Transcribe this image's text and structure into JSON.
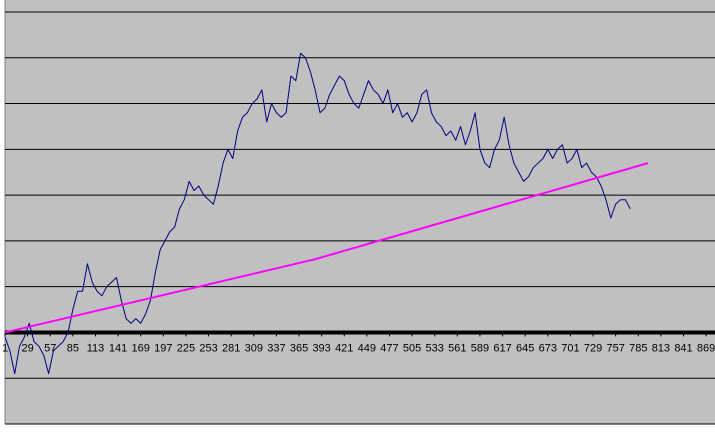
{
  "chart_data": {
    "type": "line",
    "xlim": [
      1,
      880
    ],
    "ylim": [
      -2,
      7
    ],
    "xticks": [
      1,
      29,
      57,
      85,
      113,
      141,
      169,
      197,
      225,
      253,
      281,
      309,
      337,
      365,
      393,
      421,
      449,
      477,
      505,
      533,
      561,
      589,
      617,
      645,
      673,
      701,
      729,
      757,
      785,
      813,
      841,
      869
    ],
    "yticks": [
      -2,
      -1,
      0,
      1,
      2,
      3,
      4,
      5,
      6,
      7
    ],
    "grid": true,
    "series": [
      {
        "color": "#000080",
        "x": [
          1,
          7,
          13,
          19,
          25,
          31,
          37,
          43,
          49,
          55,
          61,
          67,
          73,
          79,
          85,
          91,
          97,
          103,
          109,
          115,
          121,
          127,
          133,
          139,
          145,
          151,
          157,
          163,
          169,
          175,
          181,
          187,
          193,
          199,
          205,
          211,
          217,
          223,
          229,
          235,
          241,
          247,
          253,
          259,
          265,
          271,
          277,
          283,
          289,
          295,
          301,
          307,
          313,
          319,
          325,
          331,
          337,
          343,
          349,
          355,
          361,
          367,
          373,
          379,
          385,
          391,
          397,
          403,
          409,
          415,
          421,
          427,
          433,
          439,
          445,
          451,
          457,
          463,
          469,
          475,
          481,
          487,
          493,
          499,
          505,
          511,
          517,
          523,
          529,
          535,
          541,
          547,
          553,
          559,
          565,
          571,
          577,
          583,
          589,
          595,
          601,
          607,
          613,
          619,
          625,
          631,
          637,
          643,
          649,
          655,
          661,
          667,
          673,
          679,
          685,
          691,
          697,
          703,
          709,
          715,
          721,
          727,
          733,
          739,
          745,
          751,
          757,
          763,
          769,
          775
        ],
        "values": [
          -0.1,
          -0.4,
          -0.9,
          -0.3,
          -0.1,
          0.2,
          -0.2,
          -0.3,
          -0.5,
          -0.9,
          -0.4,
          -0.3,
          -0.2,
          0.0,
          0.5,
          0.9,
          0.9,
          1.5,
          1.1,
          0.9,
          0.8,
          1.0,
          1.1,
          1.2,
          0.7,
          0.3,
          0.2,
          0.3,
          0.2,
          0.4,
          0.7,
          1.3,
          1.8,
          2.0,
          2.2,
          2.3,
          2.7,
          2.9,
          3.3,
          3.1,
          3.2,
          3.0,
          2.9,
          2.8,
          3.2,
          3.7,
          4.0,
          3.8,
          4.4,
          4.7,
          4.8,
          5.0,
          5.1,
          5.3,
          4.6,
          5.0,
          4.8,
          4.7,
          4.8,
          5.6,
          5.5,
          6.1,
          6.0,
          5.7,
          5.3,
          4.8,
          4.9,
          5.2,
          5.4,
          5.6,
          5.5,
          5.2,
          5.0,
          4.9,
          5.2,
          5.5,
          5.3,
          5.2,
          5.0,
          5.3,
          4.8,
          5.0,
          4.7,
          4.8,
          4.6,
          4.8,
          5.2,
          5.3,
          4.8,
          4.6,
          4.5,
          4.3,
          4.4,
          4.2,
          4.5,
          4.1,
          4.4,
          4.8,
          4.0,
          3.7,
          3.6,
          4.0,
          4.2,
          4.7,
          4.1,
          3.7,
          3.5,
          3.3,
          3.4,
          3.6,
          3.7,
          3.8,
          4.0,
          3.8,
          4.0,
          4.1,
          3.7,
          3.8,
          4.0,
          3.6,
          3.7,
          3.5,
          3.4,
          3.2,
          2.9,
          2.5,
          2.8,
          2.9,
          2.9,
          2.7
        ]
      },
      {
        "color": "#ff00ff",
        "x": [
          1,
          385,
          797
        ],
        "values": [
          0.0,
          1.6,
          3.7
        ]
      }
    ]
  }
}
